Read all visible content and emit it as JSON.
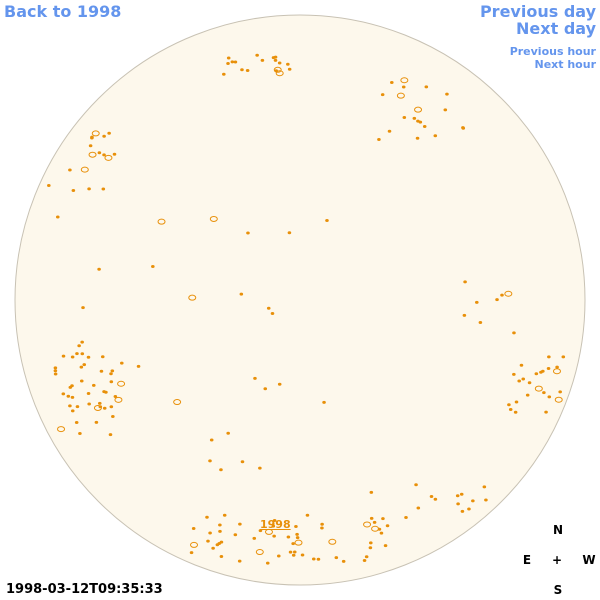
{
  "navigation": {
    "back": "Back to 1998",
    "previous_day": "Previous day",
    "next_day": "Next day",
    "previous_hour": "Previous hour",
    "next_hour": "Next hour"
  },
  "image": {
    "year_link": "1998",
    "timestamp": "1998-03-12T09:35:33"
  },
  "compass": {
    "north": "N",
    "east": "E",
    "center": "+",
    "west": "W",
    "south": "S"
  }
}
